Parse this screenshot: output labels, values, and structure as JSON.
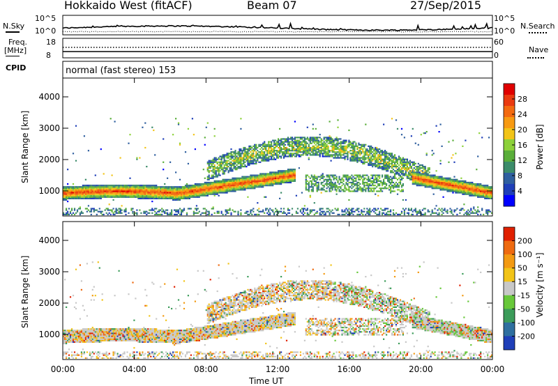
{
  "header": {
    "station": "Hokkaido West (fitACF)",
    "beam": "Beam 07",
    "date": "27/Sep/2015"
  },
  "top_panel": {
    "left_label": "N.Sky",
    "right_label": "N.Search",
    "left_ticks": [
      "10^5",
      "10^0"
    ],
    "right_ticks": [
      "10^5",
      "10^0"
    ]
  },
  "freq_panel": {
    "left_label_line1": "Freq.",
    "left_label_line2": "[MHz]",
    "left_ticks": [
      "18",
      "8"
    ],
    "right_label": "Nave",
    "right_ticks": [
      "60",
      "0"
    ]
  },
  "cpid_panel": {
    "label": "CPID",
    "mode_text": "normal (fast stereo) 153"
  },
  "chart_data": [
    {
      "type": "heatmap",
      "name": "power",
      "ylabel": "Slant Range [km]",
      "ylim": [
        200,
        4600
      ],
      "yticks": [
        1000,
        2000,
        3000,
        4000
      ],
      "xlim": [
        0,
        24
      ],
      "xticks": [
        0,
        4,
        8,
        12,
        16,
        20,
        24
      ],
      "colorbar": {
        "label": "Power [dB]",
        "ticks": [
          "28",
          "24",
          "20",
          "16",
          "12",
          "8",
          "4"
        ],
        "colors": [
          "#0000ff",
          "#1f3fb8",
          "#2f5f9f",
          "#3c8c6a",
          "#5aae3a",
          "#8dd13a",
          "#f2c418",
          "#f79a12",
          "#f36a10",
          "#ea3a10",
          "#e00000"
        ]
      }
    },
    {
      "type": "heatmap",
      "name": "velocity",
      "ylabel": "Slant Range [km]",
      "ylim": [
        200,
        4600
      ],
      "yticks": [
        1000,
        2000,
        3000,
        4000
      ],
      "xlim": [
        0,
        24
      ],
      "xticks": [
        0,
        4,
        8,
        12,
        16,
        20,
        24
      ],
      "xticklabels": [
        "00:00",
        "04:00",
        "08:00",
        "12:00",
        "16:00",
        "20:00",
        "00:00"
      ],
      "xlabel": "Time UT",
      "colorbar": {
        "label": "Velocity [m s⁻¹]",
        "ticks": [
          "200",
          "100",
          "50",
          "15",
          "-15",
          "-50",
          "-100",
          "-200"
        ],
        "colors": [
          "#1f3fb8",
          "#2f6f9f",
          "#3c9c5a",
          "#68c83a",
          "#c8c8c8",
          "#f2c418",
          "#f39a12",
          "#ee6a10",
          "#e02000"
        ]
      }
    }
  ]
}
